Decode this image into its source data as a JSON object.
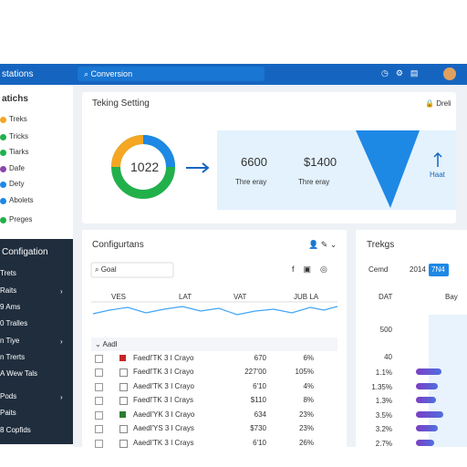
{
  "header": {
    "app": "stations",
    "search": "Conversion"
  },
  "sidebar": {
    "title": "atichs",
    "items": [
      "Treks",
      "Tricks",
      "Tiarks",
      "Dafe",
      "Dety",
      "Abolets",
      "Preges"
    ],
    "section": "Configation",
    "section_items": [
      "Trets",
      "Raits",
      "9 Ams",
      "0 Tralles",
      "n Tiye",
      "n Trerts",
      "A Wew Tals",
      "Pods",
      "Paits",
      "8 Copfids"
    ]
  },
  "card1": {
    "title": "Teking Setting",
    "action": "Dreli",
    "donut": "1022",
    "stats": [
      {
        "value": "6600",
        "label": "Thre eray"
      },
      {
        "value": "$1400",
        "label": "Thre eray"
      }
    ],
    "arrow_label": "Haat"
  },
  "card2": {
    "title": "Configurtans",
    "filter": "Goal",
    "columns": [
      "VES",
      "LAT",
      "VAT",
      "JUB LA"
    ],
    "group": "Aadl",
    "rows": [
      [
        "Faedl'TK 3 I Crayo",
        "670",
        "6%"
      ],
      [
        "Faedl'TK 3 I Crayo",
        "227'00",
        "105%"
      ],
      [
        "Aaedl'TK 3 I Crayo",
        "6'10",
        "4%"
      ],
      [
        "Faedl'TK 3 I Crays",
        "$110",
        "8%"
      ],
      [
        "Aaedl'YK 3 I Crayo",
        "634",
        "23%"
      ],
      [
        "Aaedl'YS 3 I Crays",
        "$730",
        "23%"
      ],
      [
        "Aaedl'TK 3 I Crays",
        "6'10",
        "26%"
      ]
    ]
  },
  "card3": {
    "title": "Trekgs",
    "tabs": [
      "Cemd",
      "2014",
      "7N4"
    ],
    "columns": [
      "DAT",
      "Bay"
    ],
    "rows": [
      "500",
      "40",
      "1.1%",
      "1.35%",
      "1.3%",
      "3.5%",
      "3.2%",
      "2.7%"
    ]
  }
}
